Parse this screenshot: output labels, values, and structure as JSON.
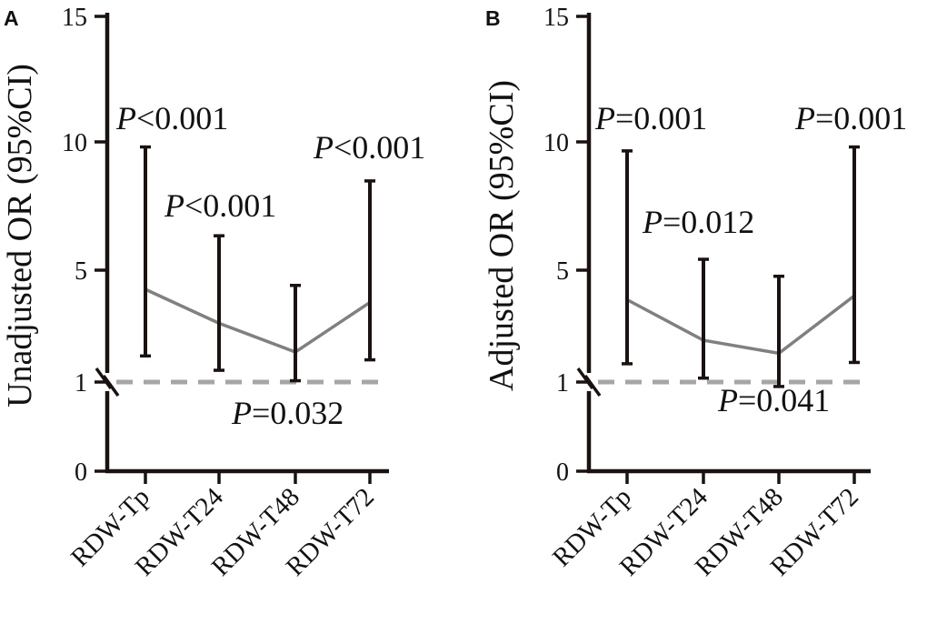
{
  "colors": {
    "axis": "#1a1210",
    "trend": "#808080",
    "reference": "#a6a6a6"
  },
  "chart_data": [
    {
      "type": "line",
      "panel_label": "A",
      "ylabel": "Unadjusted OR (95%CI)",
      "xlabel": "",
      "categories": [
        "RDW-Tp",
        "RDW-T24",
        "RDW-T48",
        "RDW-T72"
      ],
      "ytick_labels": [
        "0",
        "1",
        "5",
        "10",
        "15"
      ],
      "yticks": [
        0,
        1,
        5,
        10,
        15
      ],
      "ylim": [
        0,
        15
      ],
      "axis_break": "between 0 and 1",
      "series": [
        {
          "name": "OR",
          "values": [
            4.55,
            3.25,
            2.15,
            4.05
          ],
          "ci_low": [
            2.0,
            1.45,
            1.05,
            1.85
          ],
          "ci_high": [
            10.0,
            6.6,
            4.7,
            8.7
          ]
        }
      ],
      "reference_line": 1,
      "p_values": [
        {
          "category": "RDW-Tp",
          "p": "P",
          "text": "<0.001"
        },
        {
          "category": "RDW-T24",
          "p": "P",
          "text": "<0.001"
        },
        {
          "category": "RDW-T48",
          "p": "P",
          "text": "=0.032"
        },
        {
          "category": "RDW-T72",
          "p": "P",
          "text": "<0.001"
        }
      ]
    },
    {
      "type": "line",
      "panel_label": "B",
      "ylabel": "Adjusted OR (95%CI)",
      "xlabel": "",
      "categories": [
        "RDW-Tp",
        "RDW-T24",
        "RDW-T48",
        "RDW-T72"
      ],
      "ytick_labels": [
        "0",
        "1",
        "5",
        "10",
        "15"
      ],
      "yticks": [
        0,
        1,
        5,
        10,
        15
      ],
      "ylim": [
        0,
        15
      ],
      "axis_break": "between 0 and 1",
      "series": [
        {
          "name": "OR",
          "values": [
            4.15,
            2.6,
            2.1,
            4.3
          ],
          "ci_low": [
            1.7,
            1.15,
            0.95,
            1.75
          ],
          "ci_high": [
            9.85,
            5.7,
            5.05,
            10.0
          ]
        }
      ],
      "reference_line": 1,
      "p_values": [
        {
          "category": "RDW-Tp",
          "p": "P",
          "text": "=0.001"
        },
        {
          "category": "RDW-T24",
          "p": "P",
          "text": "=0.012"
        },
        {
          "category": "RDW-T48",
          "p": "P",
          "text": "=0.041"
        },
        {
          "category": "RDW-T72",
          "p": "P",
          "text": "=0.001"
        }
      ]
    }
  ]
}
